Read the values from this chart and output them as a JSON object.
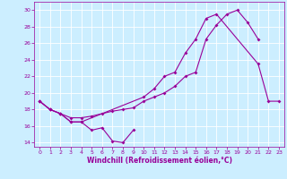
{
  "xlabel": "Windchill (Refroidissement éolien,°C)",
  "bg_color": "#cceeff",
  "line_color": "#990099",
  "xlim": [
    -0.5,
    23.5
  ],
  "ylim": [
    13.5,
    31
  ],
  "yticks": [
    14,
    16,
    18,
    20,
    22,
    24,
    26,
    28,
    30
  ],
  "xticks": [
    0,
    1,
    2,
    3,
    4,
    5,
    6,
    7,
    8,
    9,
    10,
    11,
    12,
    13,
    14,
    15,
    16,
    17,
    18,
    19,
    20,
    21,
    22,
    23
  ],
  "line1_x": [
    0,
    1,
    2,
    3,
    4,
    5,
    6,
    7,
    8,
    9
  ],
  "line1_y": [
    19,
    18,
    17.5,
    16.5,
    16.5,
    15.5,
    15.8,
    14.2,
    14,
    15.5
  ],
  "line2_x": [
    0,
    1,
    2,
    3,
    4,
    5,
    6,
    7,
    8,
    9,
    10,
    11,
    12,
    13,
    14,
    15,
    16,
    17,
    18,
    19,
    20,
    21
  ],
  "line2_y": [
    19,
    18,
    17.5,
    17,
    17,
    17.2,
    17.5,
    17.8,
    18,
    18.2,
    19,
    19.5,
    20,
    20.8,
    22,
    22.5,
    26.5,
    28.2,
    29.5,
    30,
    28.5,
    26.5
  ],
  "line3_x": [
    0,
    1,
    2,
    3,
    4,
    10,
    11,
    12,
    13,
    14,
    15,
    16,
    17,
    21,
    22,
    23
  ],
  "line3_y": [
    19,
    18,
    17.5,
    16.5,
    16.5,
    19.5,
    20.5,
    22,
    22.5,
    24.8,
    26.5,
    29,
    29.5,
    23.5,
    19,
    19
  ]
}
